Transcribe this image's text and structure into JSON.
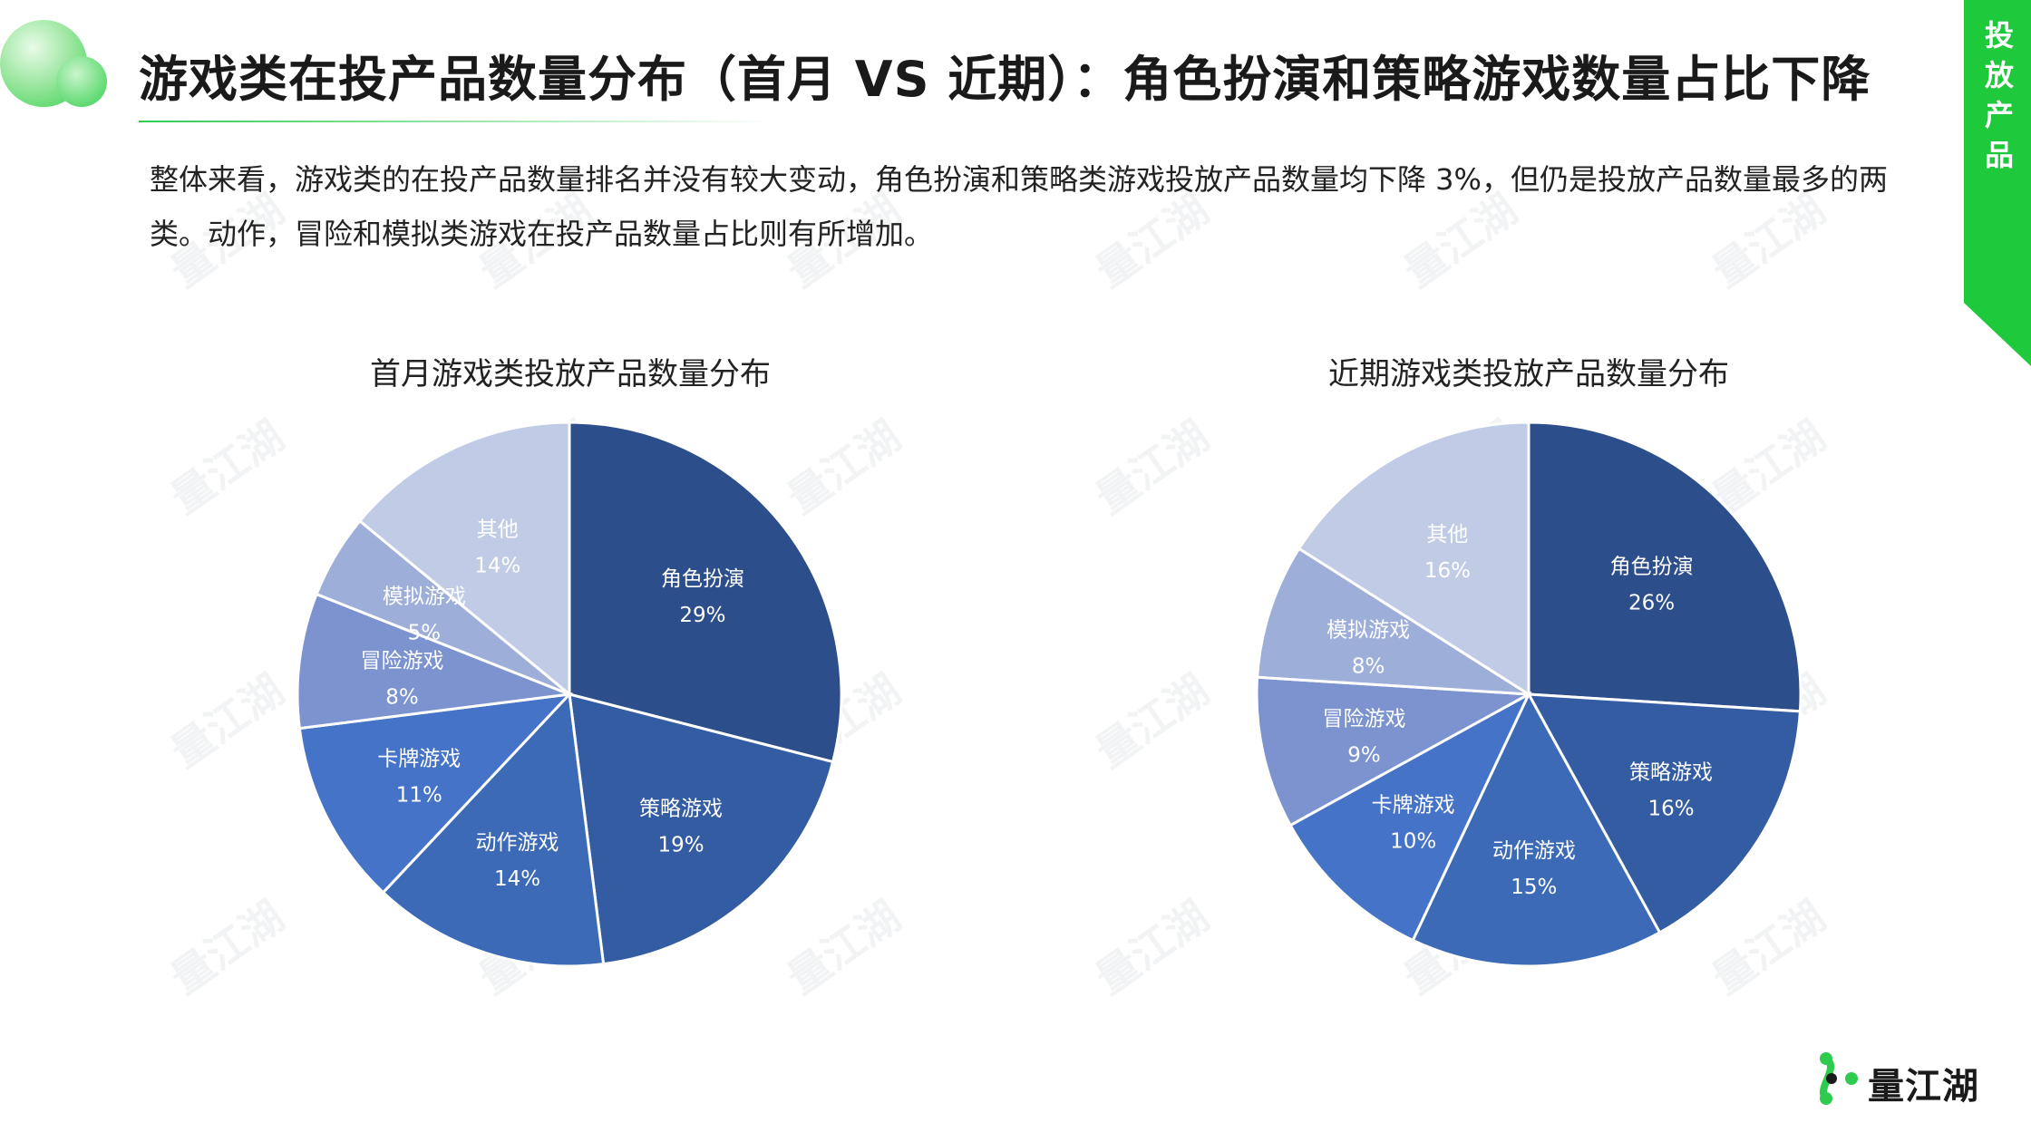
{
  "header": {
    "title": "游戏类在投产品数量分布（首月 VS 近期）：角色扮演和策略游戏数量占比下降",
    "description": "整体来看，游戏类的在投产品数量排名并没有较大变动，角色扮演和策略类游戏投放产品数量均下降 3%，但仍是投放产品数量最多的两类。动作，冒险和模拟类游戏在投产品数量占比则有所增加。"
  },
  "side_tab": {
    "text": "投放产品",
    "color": "#1ec93c"
  },
  "watermark": {
    "text": "量江湖"
  },
  "brand": {
    "name": "量江湖",
    "accent": "#2fcb4f"
  },
  "chart_data": [
    {
      "type": "pie",
      "title": "首月游戏类投放产品数量分布",
      "categories": [
        "角色扮演",
        "策略游戏",
        "动作游戏",
        "卡牌游戏",
        "冒险游戏",
        "模拟游戏",
        "其他"
      ],
      "values": [
        29,
        19,
        14,
        11,
        8,
        5,
        14
      ],
      "value_labels": [
        "29%",
        "19%",
        "14%",
        "11%",
        "8%",
        "5%",
        "14%"
      ],
      "colors": [
        "#2c4e8a",
        "#345ca3",
        "#3c6ab7",
        "#4573c8",
        "#7c93cf",
        "#9daed9",
        "#c0cbe5"
      ],
      "start_angle": "12 o'clock, clockwise",
      "legend": "none"
    },
    {
      "type": "pie",
      "title": "近期游戏类投放产品数量分布",
      "categories": [
        "角色扮演",
        "策略游戏",
        "动作游戏",
        "卡牌游戏",
        "冒险游戏",
        "模拟游戏",
        "其他"
      ],
      "values": [
        26,
        16,
        15,
        10,
        9,
        8,
        16
      ],
      "value_labels": [
        "26%",
        "16%",
        "15%",
        "10%",
        "9%",
        "8%",
        "16%"
      ],
      "colors": [
        "#2c4e8a",
        "#345ca3",
        "#3c6ab7",
        "#4573c8",
        "#7c93cf",
        "#9daed9",
        "#c0cbe5"
      ],
      "start_angle": "12 o'clock, clockwise",
      "legend": "none"
    }
  ]
}
